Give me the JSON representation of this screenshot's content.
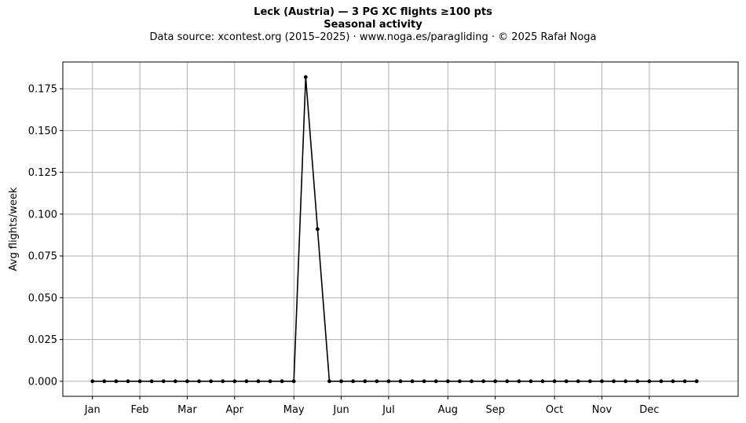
{
  "header": {
    "title": "Leck (Austria)  —  3 PG XC flights ≥100 pts",
    "subtitle": "Seasonal activity",
    "source": "Data source: xcontest.org (2015–2025)  ·  www.noga.es/paragliding  ·  © 2025 Rafał Noga"
  },
  "chart_data": {
    "type": "line",
    "title": "Leck (Austria)  —  3 PG XC flights ≥100 pts",
    "subtitle": "Seasonal activity",
    "xlabel": "",
    "ylabel": "Avg flights/week",
    "x_unit": "week of year",
    "xlim": [
      -2.5,
      54.5
    ],
    "ylim": [
      -0.009,
      0.191
    ],
    "yticks": [
      0.0,
      0.025,
      0.05,
      0.075,
      0.1,
      0.125,
      0.15,
      0.175
    ],
    "ytick_labels": [
      "0.000",
      "0.025",
      "0.050",
      "0.075",
      "0.100",
      "0.125",
      "0.150",
      "0.175"
    ],
    "xticks": [
      0,
      4,
      8,
      12,
      17,
      21,
      25,
      30,
      34,
      39,
      43,
      47
    ],
    "xtick_labels": [
      "Jan",
      "Feb",
      "Mar",
      "Apr",
      "May",
      "Jun",
      "Jul",
      "Aug",
      "Sep",
      "Oct",
      "Nov",
      "Dec"
    ],
    "grid": true,
    "color": "#000000",
    "marker": "dot",
    "series": [
      {
        "x": [
          0,
          1,
          2,
          3,
          4,
          5,
          6,
          7,
          8,
          9,
          10,
          11,
          12,
          13,
          14,
          15,
          16,
          17,
          18,
          19,
          20,
          21,
          22,
          23,
          24,
          25,
          26,
          27,
          28,
          29,
          30,
          31,
          32,
          33,
          34,
          35,
          36,
          37,
          38,
          39,
          40,
          41,
          42,
          43,
          44,
          45,
          46,
          47,
          48,
          49,
          50,
          51
        ],
        "values": [
          0,
          0,
          0,
          0,
          0,
          0,
          0,
          0,
          0,
          0,
          0,
          0,
          0,
          0,
          0,
          0,
          0,
          0,
          0.182,
          0.091,
          0,
          0,
          0,
          0,
          0,
          0,
          0,
          0,
          0,
          0,
          0,
          0,
          0,
          0,
          0,
          0,
          0,
          0,
          0,
          0,
          0,
          0,
          0,
          0,
          0,
          0,
          0,
          0,
          0,
          0,
          0,
          0
        ]
      }
    ]
  }
}
